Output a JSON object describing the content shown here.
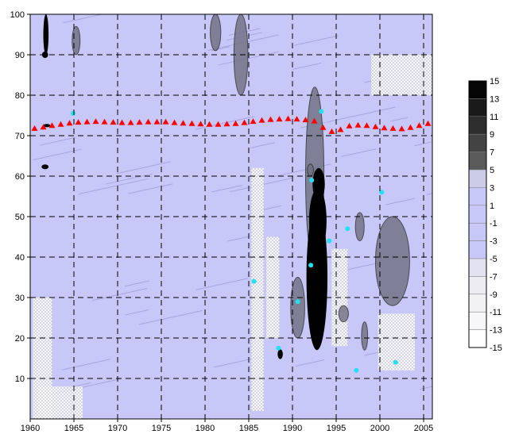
{
  "chart_data": {
    "type": "heatmap",
    "title": "",
    "xlabel": "",
    "ylabel": "",
    "xlim": [
      1960,
      2006
    ],
    "ylim": [
      0,
      100
    ],
    "x_ticks": [
      "1960",
      "1965",
      "1970",
      "1975",
      "1980",
      "1985",
      "1990",
      "1995",
      "2000",
      "2005"
    ],
    "y_ticks": [
      "10",
      "20",
      "30",
      "40",
      "50",
      "60",
      "70",
      "80",
      "90",
      "100"
    ],
    "grid": true,
    "background_color": "#c8c8f8",
    "colorbar": {
      "placement": "right",
      "levels": [
        "15",
        "13",
        "11",
        "9",
        "7",
        "5",
        "3",
        "1",
        "-1",
        "-3",
        "-5",
        "-7",
        "-9",
        "-11",
        "-13",
        "-15"
      ]
    },
    "series": [
      {
        "marker": "triangle",
        "color": "#ff0000",
        "x": [
          1960.5,
          1961.5,
          1962.5,
          1963.5,
          1964.5,
          1965.5,
          1966.5,
          1967.5,
          1968.5,
          1969.5,
          1970.5,
          1971.5,
          1972.5,
          1973.5,
          1974.5,
          1975.5,
          1976.5,
          1977.5,
          1978.5,
          1979.5,
          1980.5,
          1981.5,
          1982.5,
          1983.5,
          1984.5,
          1985.5,
          1986.5,
          1987.5,
          1988.5,
          1989.5,
          1990.5,
          1991.5,
          1992.5,
          1993.5,
          1994.5,
          1995.5,
          1996.5,
          1997.5,
          1998.5,
          1999.5,
          2000.5,
          2001.5,
          2002.5,
          2003.5,
          2004.5,
          2005.5
        ],
        "y": [
          71.8,
          72.1,
          72.5,
          72.8,
          73.1,
          73.3,
          73.4,
          73.5,
          73.4,
          73.3,
          73.2,
          73.2,
          73.3,
          73.4,
          73.4,
          73.4,
          73.2,
          73.1,
          73.0,
          72.9,
          72.8,
          72.8,
          72.9,
          73.0,
          73.2,
          73.5,
          73.8,
          74.0,
          74.1,
          74.2,
          74.1,
          73.9,
          73.6,
          72.0,
          71.0,
          71.5,
          72.4,
          72.6,
          72.5,
          72.2,
          71.9,
          71.8,
          71.7,
          72.0,
          72.5,
          73.0
        ]
      }
    ]
  }
}
